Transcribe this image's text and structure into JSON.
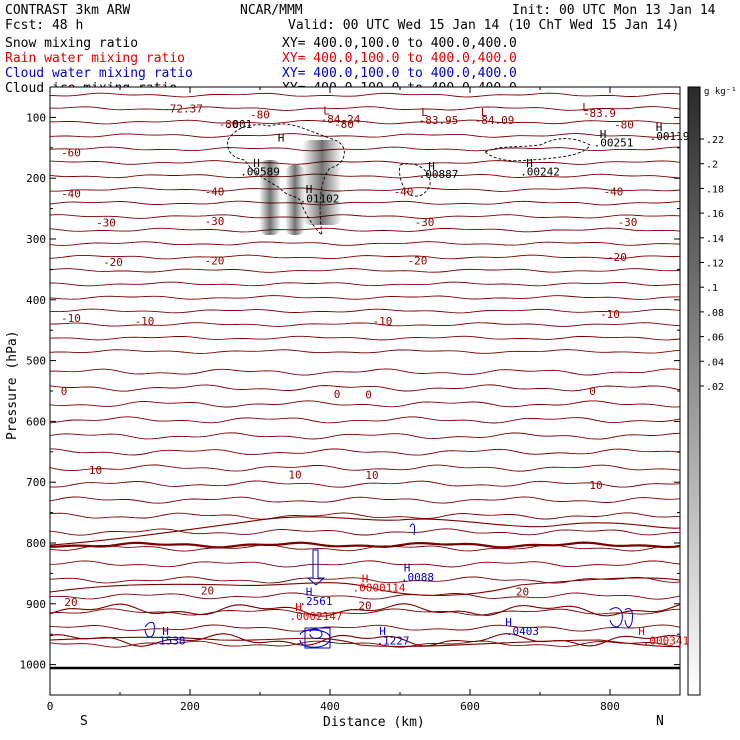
{
  "header": {
    "left_line1": "CONTRAST  3km ARW",
    "center_line1": "NCAR/MMM",
    "right_line1": "Init: 00 UTC Mon 13 Jan 14",
    "left_line2": "Fcst:   48 h",
    "right_line2": "Valid: 00 UTC Wed 15 Jan 14 (10 ChT Wed 15 Jan 14)",
    "fields": [
      {
        "name": "Snow mixing ratio",
        "xy": "XY= 400.0,100.0 to 400.0,400.0",
        "color": "#000000"
      },
      {
        "name": "Rain water mixing ratio",
        "xy": "XY= 400.0,100.0 to 400.0,400.0",
        "color": "#e00000"
      },
      {
        "name": "Cloud water mixing ratio",
        "xy": "XY= 400.0,100.0 to 400.0,400.0",
        "color": "#0000cc"
      },
      {
        "name": "Cloud ice mixing ratio",
        "xy": "XY= 400.0,100.0 to 400.0,400.0",
        "color": "#000000"
      }
    ]
  },
  "chart_data": {
    "type": "contour",
    "xlabel": "Distance (km)",
    "ylabel": "Pressure (hPa)",
    "xlim": [
      0,
      900
    ],
    "ylim": [
      1050,
      50
    ],
    "xticks": [
      0,
      200,
      400,
      600,
      800
    ],
    "yticks": [
      100,
      200,
      300,
      400,
      500,
      600,
      700,
      800,
      900,
      1000
    ],
    "endpoints": {
      "left": "S",
      "right": "N"
    },
    "colorbar": {
      "unit": "g kg⁻¹",
      "ticks": [
        ".22",
        ".2",
        ".18",
        ".16",
        ".14",
        ".12",
        ".1",
        ".08",
        ".06",
        ".04",
        ".02"
      ]
    },
    "temperature_contours": [
      {
        "value": -80,
        "p": 120
      },
      {
        "value": -60,
        "p": 160
      },
      {
        "value": -50,
        "p": 180
      },
      {
        "value": -40,
        "p": 225
      },
      {
        "value": -30,
        "p": 265
      },
      {
        "value": -20,
        "p": 318
      },
      {
        "value": -10,
        "p": 415
      },
      {
        "value": 0,
        "p": 540
      },
      {
        "value": 10,
        "p": 660
      },
      {
        "value": 20,
        "p": 890
      }
    ],
    "temperature_labels": [
      {
        "text": "-72.37",
        "x": 190,
        "p": 85,
        "color": "#8b0000"
      },
      {
        "text": "-80",
        "x": 300,
        "p": 95,
        "color": "#8b0000"
      },
      {
        "text": "-80",
        "x": 255,
        "p": 111,
        "color": "#8b0000"
      },
      {
        "text": "-80",
        "x": 420,
        "p": 111,
        "color": "#8b0000"
      },
      {
        "text": "-80",
        "x": 820,
        "p": 112,
        "color": "#8b0000"
      },
      {
        "text": "-60",
        "x": 30,
        "p": 158,
        "color": "#8b0000"
      },
      {
        "text": "-40",
        "x": 30,
        "p": 225,
        "color": "#8b0000"
      },
      {
        "text": "-40",
        "x": 235,
        "p": 222,
        "color": "#8b0000"
      },
      {
        "text": "-40",
        "x": 505,
        "p": 222,
        "color": "#8b0000"
      },
      {
        "text": "-40",
        "x": 805,
        "p": 222,
        "color": "#8b0000"
      },
      {
        "text": "-30",
        "x": 80,
        "p": 273,
        "color": "#8b0000"
      },
      {
        "text": "-30",
        "x": 235,
        "p": 270,
        "color": "#8b0000"
      },
      {
        "text": "-30",
        "x": 535,
        "p": 272,
        "color": "#8b0000"
      },
      {
        "text": "-30",
        "x": 825,
        "p": 272,
        "color": "#8b0000"
      },
      {
        "text": "-20",
        "x": 90,
        "p": 338,
        "color": "#8b0000"
      },
      {
        "text": "-20",
        "x": 235,
        "p": 335,
        "color": "#8b0000"
      },
      {
        "text": "-20",
        "x": 525,
        "p": 335,
        "color": "#8b0000"
      },
      {
        "text": "-20",
        "x": 810,
        "p": 330,
        "color": "#8b0000"
      },
      {
        "text": "-10",
        "x": 30,
        "p": 430,
        "color": "#8b0000"
      },
      {
        "text": "-10",
        "x": 135,
        "p": 435,
        "color": "#8b0000"
      },
      {
        "text": "-10",
        "x": 475,
        "p": 435,
        "color": "#8b0000"
      },
      {
        "text": "-10",
        "x": 800,
        "p": 423,
        "color": "#8b0000"
      },
      {
        "text": "0",
        "x": 20,
        "p": 550,
        "color": "#8b0000"
      },
      {
        "text": "0",
        "x": 410,
        "p": 555,
        "color": "#8b0000"
      },
      {
        "text": "0",
        "x": 455,
        "p": 556,
        "color": "#8b0000"
      },
      {
        "text": "0",
        "x": 775,
        "p": 550,
        "color": "#8b0000"
      },
      {
        "text": "10",
        "x": 65,
        "p": 680,
        "color": "#8b0000"
      },
      {
        "text": "10",
        "x": 350,
        "p": 687,
        "color": "#8b0000"
      },
      {
        "text": "10",
        "x": 460,
        "p": 688,
        "color": "#8b0000"
      },
      {
        "text": "10",
        "x": 780,
        "p": 705,
        "color": "#8b0000"
      },
      {
        "text": "20",
        "x": 30,
        "p": 897,
        "color": "#8b0000"
      },
      {
        "text": "20",
        "x": 225,
        "p": 878,
        "color": "#8b0000"
      },
      {
        "text": "20",
        "x": 450,
        "p": 903,
        "color": "#8b0000"
      },
      {
        "text": "20",
        "x": 675,
        "p": 880,
        "color": "#8b0000"
      }
    ],
    "extrema_markers": [
      {
        "symbol": "L",
        "x": 395,
        "p": 89,
        "color": "#8b0000"
      },
      {
        "symbol": "L",
        "x": 535,
        "p": 91,
        "color": "#8b0000"
      },
      {
        "symbol": "L",
        "x": 620,
        "p": 91,
        "color": "#8b0000"
      },
      {
        "symbol": "L",
        "x": 765,
        "p": 83,
        "color": "#8b0000"
      },
      {
        "symbol": "H",
        "x": 330,
        "p": 133,
        "color": "#000000"
      },
      {
        "symbol": "H",
        "x": 790,
        "p": 127,
        "color": "#000000"
      },
      {
        "symbol": "H",
        "x": 870,
        "p": 116,
        "color": "#000000"
      },
      {
        "symbol": "H",
        "x": 295,
        "p": 175,
        "color": "#000000"
      },
      {
        "symbol": "H",
        "x": 545,
        "p": 180,
        "color": "#000000"
      },
      {
        "symbol": "H",
        "x": 685,
        "p": 175,
        "color": "#000000"
      },
      {
        "symbol": "H",
        "x": 370,
        "p": 218,
        "color": "#000000"
      },
      {
        "symbol": "H",
        "x": 510,
        "p": 840,
        "color": "#0000cc"
      },
      {
        "symbol": "H",
        "x": 450,
        "p": 858,
        "color": "#e00000"
      },
      {
        "symbol": "H",
        "x": 370,
        "p": 880,
        "color": "#0000cc"
      },
      {
        "symbol": "H",
        "x": 355,
        "p": 905,
        "color": "#e00000"
      },
      {
        "symbol": "H",
        "x": 165,
        "p": 945,
        "color": "#0000cc"
      },
      {
        "symbol": "H",
        "x": 475,
        "p": 945,
        "color": "#0000cc"
      },
      {
        "symbol": "H",
        "x": 655,
        "p": 930,
        "color": "#0000cc"
      },
      {
        "symbol": "H",
        "x": 845,
        "p": 945,
        "color": "#e00000"
      }
    ],
    "extrema_values": [
      {
        "text": "-84.24",
        "x": 415,
        "p": 103,
        "color": "#8b0000"
      },
      {
        "text": "-83.95",
        "x": 555,
        "p": 104,
        "color": "#8b0000"
      },
      {
        "text": "-84.09",
        "x": 635,
        "p": 104,
        "color": "#8b0000"
      },
      {
        "text": "-83.9",
        "x": 785,
        "p": 93,
        "color": "#8b0000"
      },
      {
        "text": ".001",
        "x": 270,
        "p": 111,
        "color": "#000000"
      },
      {
        "text": ".00251",
        "x": 805,
        "p": 141,
        "color": "#000000"
      },
      {
        "text": ".00119",
        "x": 885,
        "p": 131,
        "color": "#000000"
      },
      {
        "text": ".00589",
        "x": 300,
        "p": 189,
        "color": "#000000"
      },
      {
        "text": ".00887",
        "x": 555,
        "p": 193,
        "color": "#000000"
      },
      {
        "text": ".00242",
        "x": 700,
        "p": 189,
        "color": "#000000"
      },
      {
        "text": ".01102",
        "x": 385,
        "p": 233,
        "color": "#000000"
      },
      {
        "text": ".0088",
        "x": 525,
        "p": 856,
        "color": "#0000cc"
      },
      {
        "text": ".0000114",
        "x": 470,
        "p": 873,
        "color": "#e00000"
      },
      {
        "text": ".2561",
        "x": 380,
        "p": 895,
        "color": "#0000cc"
      },
      {
        "text": ".0002147",
        "x": 380,
        "p": 920,
        "color": "#e00000"
      },
      {
        "text": ".1538",
        "x": 170,
        "p": 960,
        "color": "#0000cc"
      },
      {
        "text": ".1227",
        "x": 490,
        "p": 960,
        "color": "#0000cc"
      },
      {
        "text": ".0403",
        "x": 675,
        "p": 945,
        "color": "#0000cc"
      },
      {
        "text": ".000341",
        "x": 880,
        "p": 960,
        "color": "#e00000"
      }
    ]
  }
}
